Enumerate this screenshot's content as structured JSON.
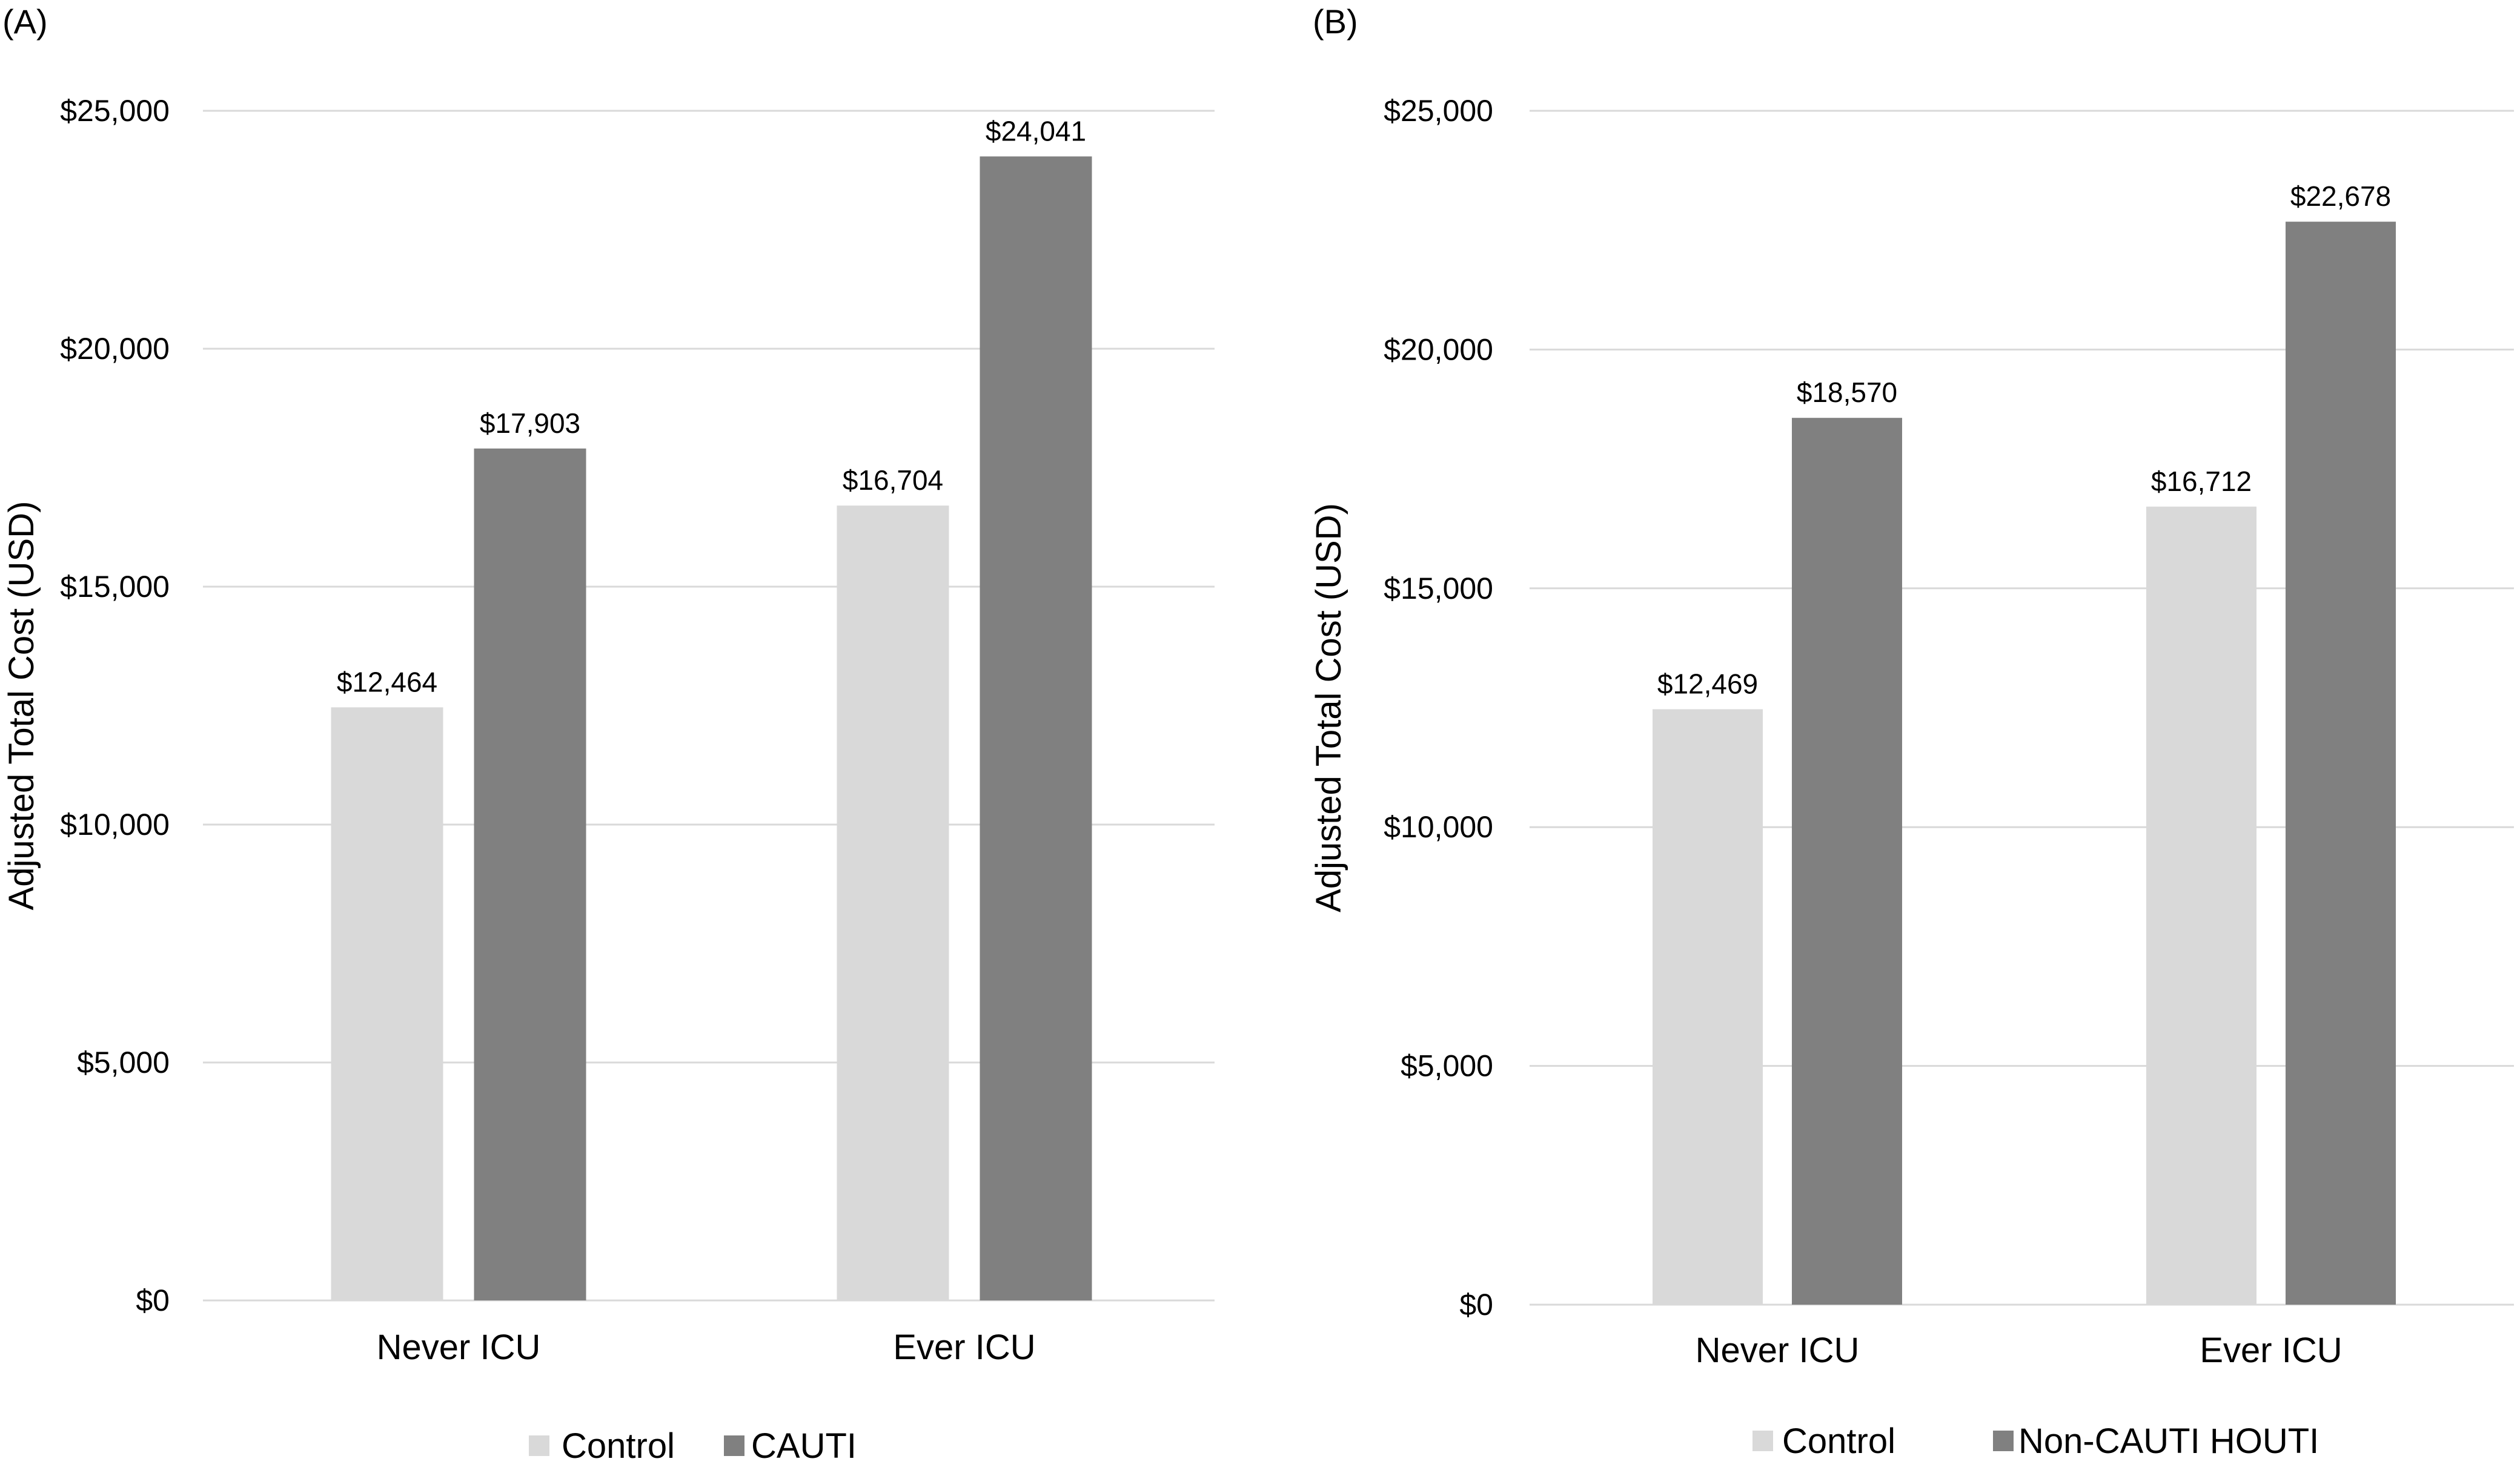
{
  "chart_data": [
    {
      "panel": "(A)",
      "type": "bar",
      "categories": [
        "Never ICU",
        "Ever ICU"
      ],
      "series": [
        {
          "name": "Control",
          "values": [
            12464,
            16704
          ],
          "labels": [
            "$12,464",
            "$16,704"
          ],
          "color": "#d9d9d9"
        },
        {
          "name": "CAUTI",
          "values": [
            17903,
            24041
          ],
          "labels": [
            "$17,903",
            "$24,041"
          ],
          "color": "#808080"
        }
      ],
      "ylabel": "Adjusted Total Cost (USD)",
      "ylim": [
        0,
        25000
      ],
      "yticks": [
        0,
        5000,
        10000,
        15000,
        20000,
        25000
      ],
      "ytick_labels": [
        "$0",
        "$5,000",
        "$10,000",
        "$15,000",
        "$20,000",
        "$25,000"
      ],
      "grid": true,
      "legend_position": "bottom"
    },
    {
      "panel": "(B)",
      "type": "bar",
      "categories": [
        "Never ICU",
        "Ever ICU"
      ],
      "series": [
        {
          "name": "Control",
          "values": [
            12469,
            16712
          ],
          "labels": [
            "$12,469",
            "$16,712"
          ],
          "color": "#d9d9d9"
        },
        {
          "name": "Non-CAUTI HOUTI",
          "values": [
            18570,
            22678
          ],
          "labels": [
            "$18,570",
            "$22,678"
          ],
          "color": "#808080"
        }
      ],
      "ylabel": "Adjusted Total Cost (USD)",
      "ylim": [
        0,
        25000
      ],
      "yticks": [
        0,
        5000,
        10000,
        15000,
        20000,
        25000
      ],
      "ytick_labels": [
        "$0",
        "$5,000",
        "$10,000",
        "$15,000",
        "$20,000",
        "$25,000"
      ],
      "grid": true,
      "legend_position": "bottom"
    }
  ]
}
